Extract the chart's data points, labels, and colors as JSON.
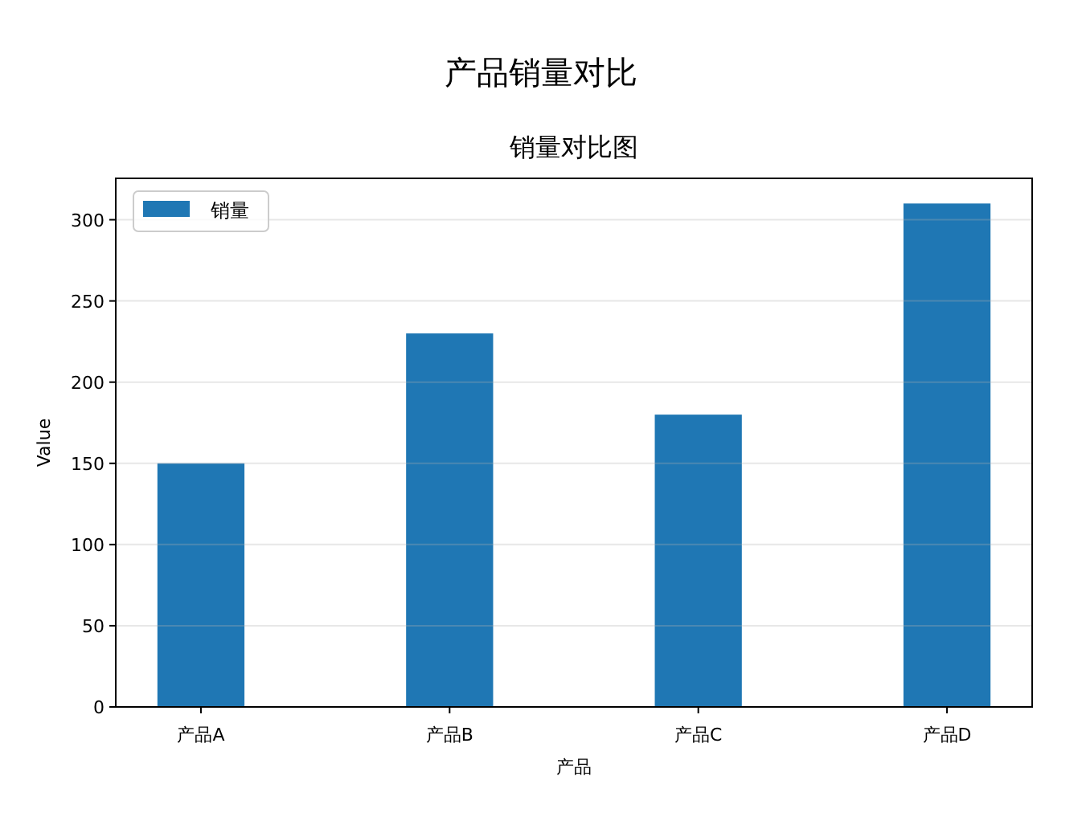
{
  "chart_data": {
    "type": "bar",
    "title": "产品销量对比",
    "subtitle": "销量对比图",
    "xlabel": "产品",
    "ylabel": "Value",
    "categories": [
      "产品A",
      "产品B",
      "产品C",
      "产品D"
    ],
    "series": [
      {
        "name": "销量",
        "color": "#1f77b4",
        "values": [
          150,
          230,
          180,
          310
        ]
      }
    ],
    "ylim": [
      0,
      325.5
    ],
    "yticks": [
      0,
      50,
      100,
      150,
      200,
      250,
      300
    ],
    "grid": "y",
    "legend": "top left"
  }
}
